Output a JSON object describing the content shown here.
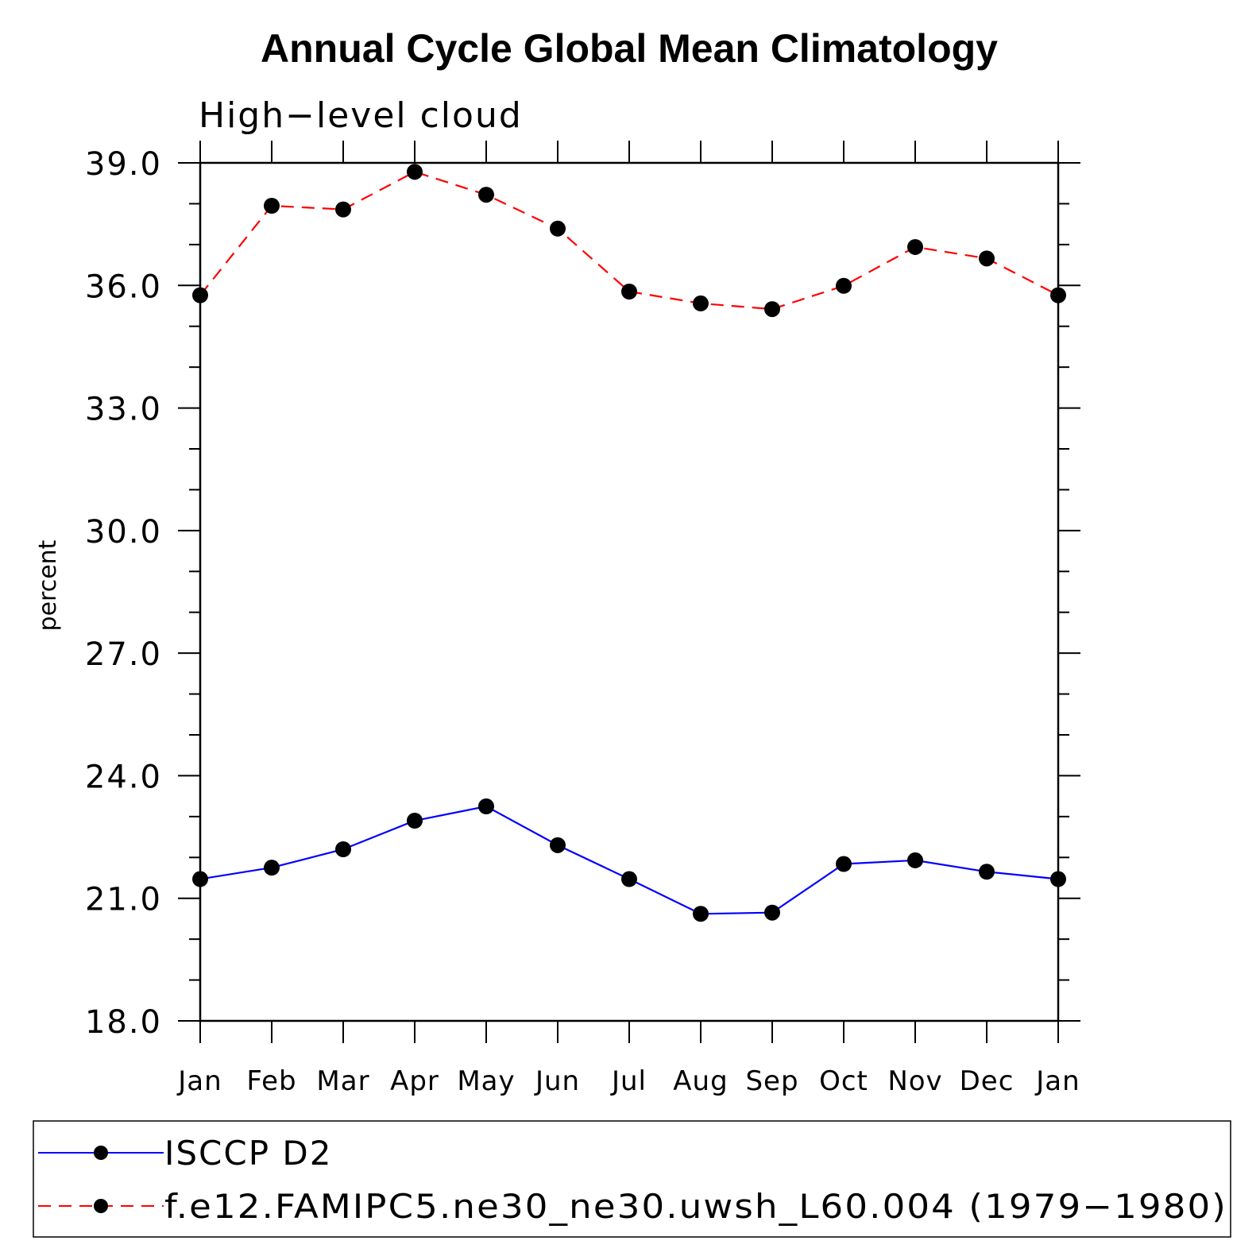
{
  "chart_data": {
    "type": "line",
    "title": "Annual Cycle Global Mean Climatology",
    "subtitle": "High−level cloud",
    "ylabel": "percent",
    "xlabel": "",
    "categories": [
      "Jan",
      "Feb",
      "Mar",
      "Apr",
      "May",
      "Jun",
      "Jul",
      "Aug",
      "Sep",
      "Oct",
      "Nov",
      "Dec",
      "Jan"
    ],
    "ylim": [
      18.0,
      39.0
    ],
    "yticks": [
      "18.0",
      "21.0",
      "24.0",
      "27.0",
      "30.0",
      "33.0",
      "36.0",
      "39.0"
    ],
    "ytick_values": [
      18,
      21,
      24,
      27,
      30,
      33,
      36,
      39
    ],
    "grid": false,
    "legend_placement": "bottom",
    "series": [
      {
        "name": "ISCCP D2",
        "color": "#0000ff",
        "dash": "solid",
        "values": [
          21.47,
          21.75,
          22.2,
          22.9,
          23.25,
          22.3,
          21.47,
          20.62,
          20.65,
          21.84,
          21.93,
          21.65,
          21.47
        ]
      },
      {
        "name": "f.e12.FAMIPC5.ne30_ne30.uwsh_L60.004 (1979−1980)",
        "color": "#ff0000",
        "dash": "dashed",
        "values": [
          35.76,
          37.95,
          37.86,
          38.78,
          38.22,
          37.39,
          35.85,
          35.56,
          35.42,
          35.99,
          36.94,
          36.66,
          35.76
        ]
      }
    ],
    "marker_color": "#000000"
  }
}
